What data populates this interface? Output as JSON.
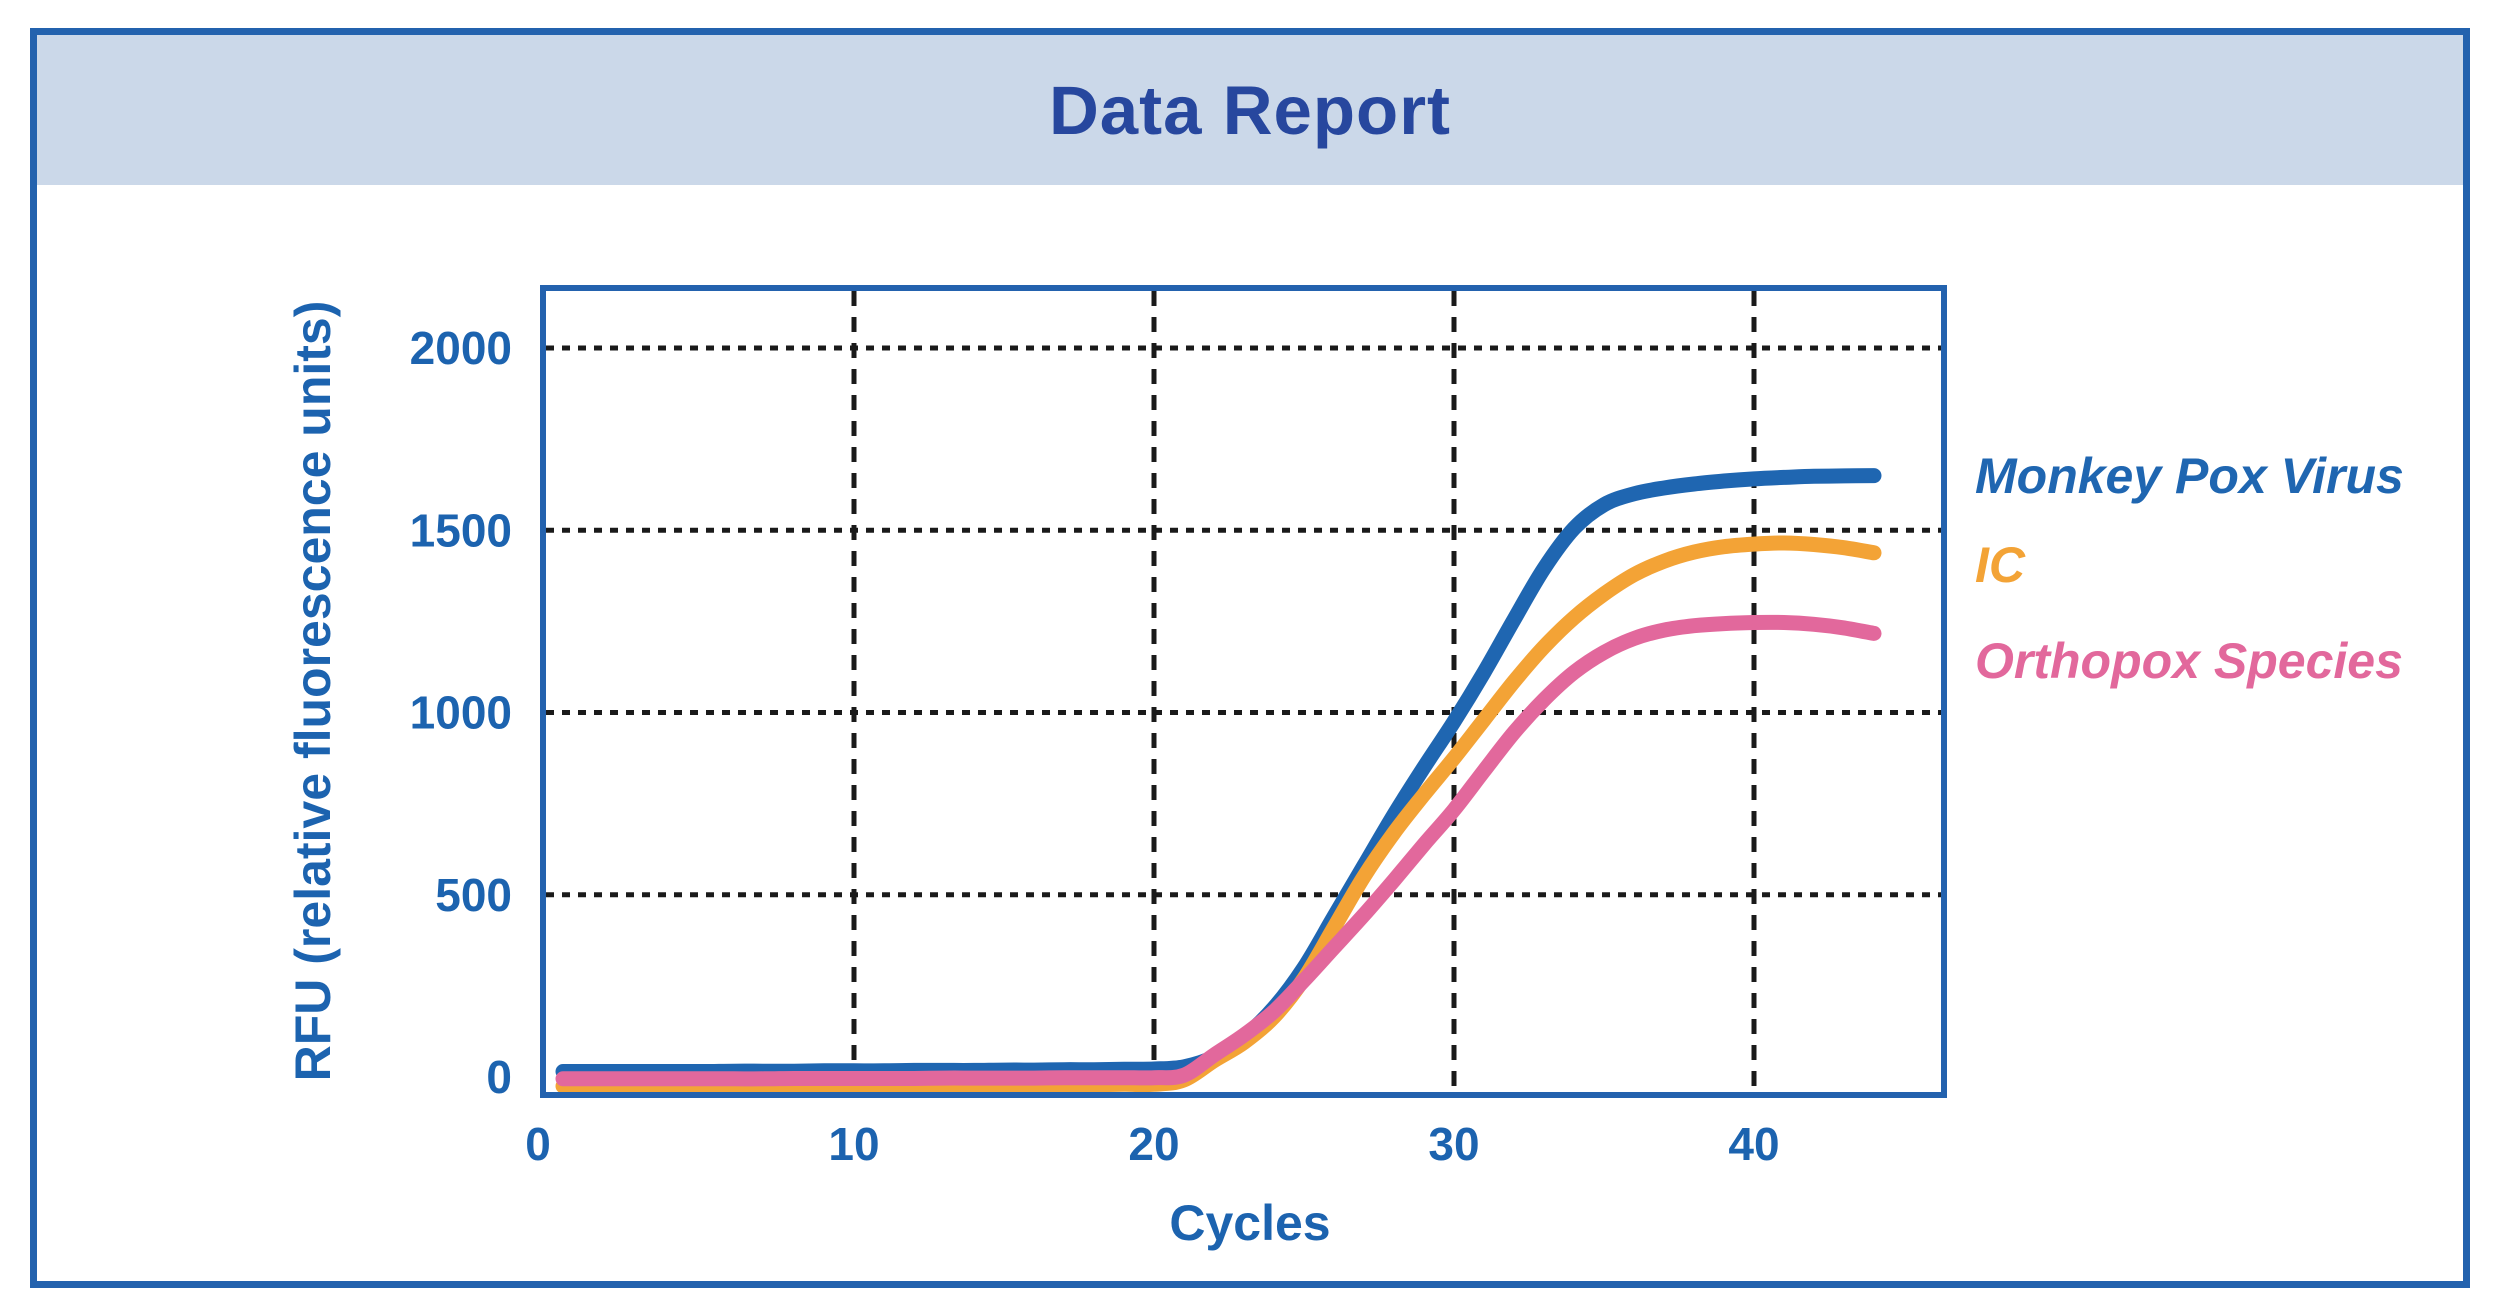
{
  "report": {
    "title": "Data Report"
  },
  "colors": {
    "outer_frame": "#2362ae",
    "header_background": "#cbd8e9",
    "title_text": "#27479e",
    "axis_text": "#1c63af",
    "gridline": "#1a1a1a"
  },
  "chart_data": {
    "type": "line",
    "title": "Data Report",
    "xlabel": "Cycles",
    "ylabel": "RFU (relative fluorescence units)",
    "xlim": [
      -0.4,
      46
    ],
    "ylim": [
      -75,
      2165
    ],
    "xticks": [
      0,
      10,
      20,
      30,
      40
    ],
    "yticks": [
      0,
      500,
      1000,
      1500,
      2000
    ],
    "grid": "dotted",
    "legend_position": "right",
    "x": [
      0.3,
      1,
      2,
      3,
      4,
      5,
      6,
      7,
      8,
      9,
      10,
      11,
      12,
      13,
      14,
      15,
      16,
      17,
      18,
      19,
      20,
      21,
      22,
      23,
      24,
      25,
      26,
      27,
      28,
      29,
      30,
      31,
      32,
      33,
      34,
      35,
      36,
      37,
      38,
      39,
      40,
      41,
      42,
      43,
      44
    ],
    "series": [
      {
        "name": "Monkey Pox Virus",
        "color": "#1f66b1",
        "values": [
          15,
          15,
          15,
          15,
          15,
          15,
          16,
          16,
          16,
          17,
          17,
          17,
          18,
          18,
          18,
          19,
          19,
          20,
          20,
          21,
          22,
          28,
          55,
          110,
          190,
          300,
          440,
          580,
          720,
          850,
          975,
          1110,
          1255,
          1395,
          1505,
          1570,
          1600,
          1616,
          1627,
          1635,
          1641,
          1645,
          1648,
          1649,
          1650
        ]
      },
      {
        "name": "IC",
        "color": "#f3a336",
        "values": [
          -25,
          -25,
          -25,
          -25,
          -25,
          -25,
          -25,
          -24,
          -24,
          -24,
          -23,
          -23,
          -23,
          -22,
          -22,
          -22,
          -21,
          -21,
          -21,
          -20,
          -20,
          -8,
          45,
          95,
          165,
          270,
          410,
          550,
          670,
          775,
          875,
          980,
          1085,
          1180,
          1260,
          1325,
          1378,
          1415,
          1440,
          1455,
          1462,
          1465,
          1461,
          1452,
          1438
        ]
      },
      {
        "name": "Orthopox Species",
        "color": "#e2689c",
        "values": [
          -5,
          -5,
          -5,
          -5,
          -5,
          -5,
          -5,
          -5,
          -4,
          -4,
          -4,
          -4,
          -4,
          -3,
          -3,
          -3,
          -3,
          -2,
          -2,
          -2,
          -2,
          5,
          60,
          115,
          180,
          265,
          355,
          445,
          540,
          638,
          733,
          840,
          945,
          1035,
          1110,
          1165,
          1203,
          1226,
          1238,
          1244,
          1247,
          1247,
          1242,
          1232,
          1217
        ]
      }
    ]
  }
}
